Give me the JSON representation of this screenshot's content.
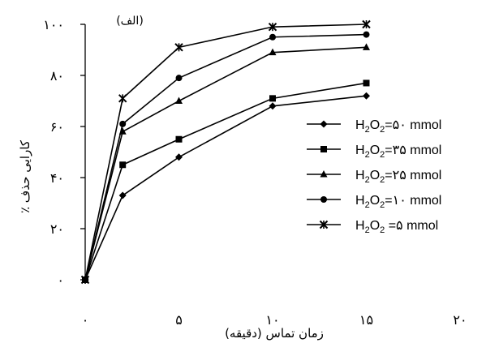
{
  "chart_data": {
    "type": "line",
    "panel_label": "(الف)",
    "ylabel": "کارایی حذف ٪",
    "xlabel": "زمان تماس (دقیقه)",
    "xlim": [
      0,
      20
    ],
    "ylim": [
      0,
      100
    ],
    "x_ticks": [
      {
        "value": 0,
        "label": "۰"
      },
      {
        "value": 5,
        "label": "۵"
      },
      {
        "value": 10,
        "label": "۱۰"
      },
      {
        "value": 15,
        "label": "۱۵"
      },
      {
        "value": 20,
        "label": "۲۰"
      }
    ],
    "y_ticks": [
      {
        "value": 0,
        "label": "۰"
      },
      {
        "value": 20,
        "label": "۲۰"
      },
      {
        "value": 40,
        "label": "۴۰"
      },
      {
        "value": 60,
        "label": "۶۰"
      },
      {
        "value": 80,
        "label": "۸۰"
      },
      {
        "value": 100,
        "label": "۱۰۰"
      }
    ],
    "grid": false,
    "legend_position": "right",
    "x": [
      0,
      2,
      5,
      10,
      15
    ],
    "series": [
      {
        "name": "H2O2=۵۰ mmol",
        "legend_prefix": "H",
        "legend_sub1": "2",
        "legend_mid": "O",
        "legend_sub2": "2",
        "legend_suffix": "=۵۰ mmol",
        "marker": "diamond",
        "values": [
          0,
          33,
          48,
          68,
          72
        ]
      },
      {
        "name": "H2O2=۳۵ mmol",
        "legend_prefix": "H",
        "legend_sub1": "2",
        "legend_mid": "O",
        "legend_sub2": "2",
        "legend_suffix": "=۳۵ mmol",
        "marker": "square",
        "values": [
          0,
          45,
          55,
          71,
          77
        ]
      },
      {
        "name": "H2O2=۲۵ mmol",
        "legend_prefix": "H",
        "legend_sub1": "2",
        "legend_mid": "O",
        "legend_sub2": "2",
        "legend_suffix": "=۲۵ mmol",
        "marker": "triangle",
        "values": [
          0,
          58,
          70,
          89,
          91
        ]
      },
      {
        "name": "H2O2=۱۰ mmol",
        "legend_prefix": "H",
        "legend_sub1": "2",
        "legend_mid": "O",
        "legend_sub2": "2",
        "legend_suffix": "=۱۰ mmol",
        "marker": "circle",
        "values": [
          0,
          61,
          79,
          95,
          96
        ]
      },
      {
        "name": "H2O2 =۵ mmol",
        "legend_prefix": "H",
        "legend_sub1": "2",
        "legend_mid": "O",
        "legend_sub2": "2",
        "legend_suffix": " =۵ mmol",
        "marker": "star",
        "values": [
          0,
          71,
          91,
          99,
          100
        ]
      }
    ],
    "line_color": "#000000"
  }
}
